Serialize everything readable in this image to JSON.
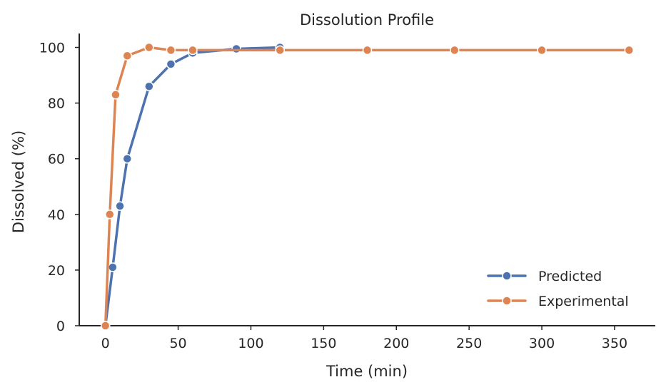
{
  "chart_data": {
    "type": "line",
    "title": "Dissolution Profile",
    "xlabel": "Time (min)",
    "ylabel": "Dissolved (%)",
    "xlim": [
      -18,
      378
    ],
    "ylim": [
      0,
      105
    ],
    "xticks": [
      0,
      50,
      100,
      150,
      200,
      250,
      300,
      350
    ],
    "yticks": [
      0,
      20,
      40,
      60,
      80,
      100
    ],
    "grid": false,
    "legend": "lower-right",
    "series": [
      {
        "name": "Predicted",
        "color": "#4c72b0",
        "marker": "circle",
        "x": [
          0,
          5,
          10,
          15,
          30,
          45,
          60,
          90,
          120
        ],
        "y": [
          0,
          21,
          43,
          60,
          86,
          94,
          98,
          99.5,
          100
        ]
      },
      {
        "name": "Experimental",
        "color": "#dd8452",
        "marker": "circle",
        "x": [
          0,
          3,
          7,
          15,
          30,
          45,
          60,
          120,
          180,
          240,
          300,
          360
        ],
        "y": [
          0,
          40,
          83,
          97,
          100,
          99,
          99,
          99,
          99,
          99,
          99,
          99
        ]
      }
    ]
  }
}
